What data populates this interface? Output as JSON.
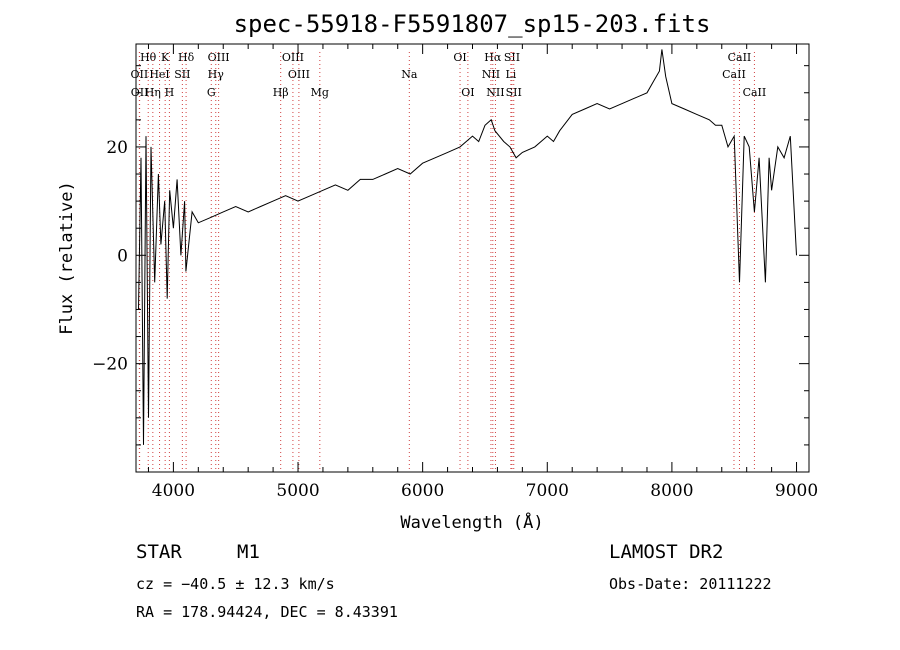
{
  "chart_data": {
    "type": "line",
    "title": "spec-55918-F5591807_sp15-203.fits",
    "xlabel": "Wavelength (Å)",
    "ylabel": "Flux (relative)",
    "xlim": [
      3700,
      9100
    ],
    "ylim": [
      -40,
      39
    ],
    "x_ticks": [
      4000,
      5000,
      6000,
      7000,
      8000,
      9000
    ],
    "y_ticks": [
      -20,
      0,
      20
    ],
    "grid": false,
    "line_markers": [
      {
        "label": "Hθ",
        "x": 3798,
        "row": 0
      },
      {
        "label": "K",
        "x": 3934,
        "row": 0
      },
      {
        "label": "Hδ",
        "x": 4102,
        "row": 0
      },
      {
        "label": "OIII",
        "x": 4363,
        "row": 0
      },
      {
        "label": "OIII",
        "x": 4959,
        "row": 0
      },
      {
        "label": "OI",
        "x": 6300,
        "row": 0
      },
      {
        "label": "Hα",
        "x": 6563,
        "row": 0
      },
      {
        "label": "SII",
        "x": 6717,
        "row": 0
      },
      {
        "label": "CaII",
        "x": 8542,
        "row": 0
      },
      {
        "label": "OII",
        "x": 3727,
        "row": 1
      },
      {
        "label": "HeI",
        "x": 3889,
        "row": 1
      },
      {
        "label": "SII",
        "x": 4072,
        "row": 1
      },
      {
        "label": "Hγ",
        "x": 4340,
        "row": 1
      },
      {
        "label": "OIII",
        "x": 5007,
        "row": 1
      },
      {
        "label": "Na",
        "x": 5893,
        "row": 1
      },
      {
        "label": "NII",
        "x": 6548,
        "row": 1
      },
      {
        "label": "Li",
        "x": 6708,
        "row": 1
      },
      {
        "label": "CaII",
        "x": 8498,
        "row": 1
      },
      {
        "label": "OII",
        "x": 3729,
        "row": 2
      },
      {
        "label": "Hη",
        "x": 3835,
        "row": 2
      },
      {
        "label": "H",
        "x": 3968,
        "row": 2
      },
      {
        "label": "G",
        "x": 4304,
        "row": 2
      },
      {
        "label": "Hβ",
        "x": 4861,
        "row": 2
      },
      {
        "label": "Mg",
        "x": 5175,
        "row": 2
      },
      {
        "label": "OI",
        "x": 6363,
        "row": 2
      },
      {
        "label": "NII",
        "x": 6584,
        "row": 2
      },
      {
        "label": "SII",
        "x": 6731,
        "row": 2
      },
      {
        "label": "CaII",
        "x": 8662,
        "row": 2
      }
    ],
    "series": [
      {
        "x": [
          3720,
          3740,
          3760,
          3780,
          3800,
          3820,
          3850,
          3880,
          3900,
          3930,
          3950,
          3970,
          4000,
          4030,
          4060,
          4090,
          4100,
          4150,
          4200,
          4300,
          4400,
          4500,
          4600,
          4700,
          4800,
          4900,
          5000,
          5100,
          5200,
          5300,
          5400,
          5500,
          5600,
          5700,
          5800,
          5900,
          6000,
          6100,
          6200,
          6300,
          6400,
          6450,
          6500,
          6550,
          6580,
          6650,
          6700,
          6750,
          6800,
          6900,
          7000,
          7050,
          7100,
          7200,
          7300,
          7400,
          7500,
          7600,
          7700,
          7800,
          7850,
          7900,
          7920,
          7950,
          8000,
          8100,
          8200,
          8300,
          8350,
          8400,
          8450,
          8500,
          8542,
          8580,
          8620,
          8662,
          8700,
          8750,
          8780,
          8800,
          8850,
          8900,
          8950,
          9000
        ],
        "y": [
          -10,
          18,
          -35,
          22,
          -30,
          20,
          -5,
          15,
          2,
          10,
          -8,
          12,
          5,
          14,
          0,
          10,
          -3,
          8,
          6,
          7,
          8,
          9,
          8,
          9,
          10,
          11,
          10,
          11,
          12,
          13,
          12,
          14,
          14,
          15,
          16,
          15,
          17,
          18,
          19,
          20,
          22,
          21,
          24,
          25,
          23,
          21,
          20,
          18,
          19,
          20,
          22,
          21,
          23,
          26,
          27,
          28,
          27,
          28,
          29,
          30,
          32,
          34,
          38,
          33,
          28,
          27,
          26,
          25,
          24,
          24,
          20,
          22,
          -5,
          22,
          20,
          8,
          18,
          -5,
          18,
          12,
          20,
          18,
          22,
          0
        ]
      }
    ]
  },
  "info": {
    "object": "STAR",
    "subclass": "M1",
    "survey": "LAMOST DR2",
    "cz": "cz = −40.5 ± 12.3 km/s",
    "obs_date": "Obs-Date: 20111222",
    "coords": "RA = 178.94424, DEC =   8.43391"
  }
}
